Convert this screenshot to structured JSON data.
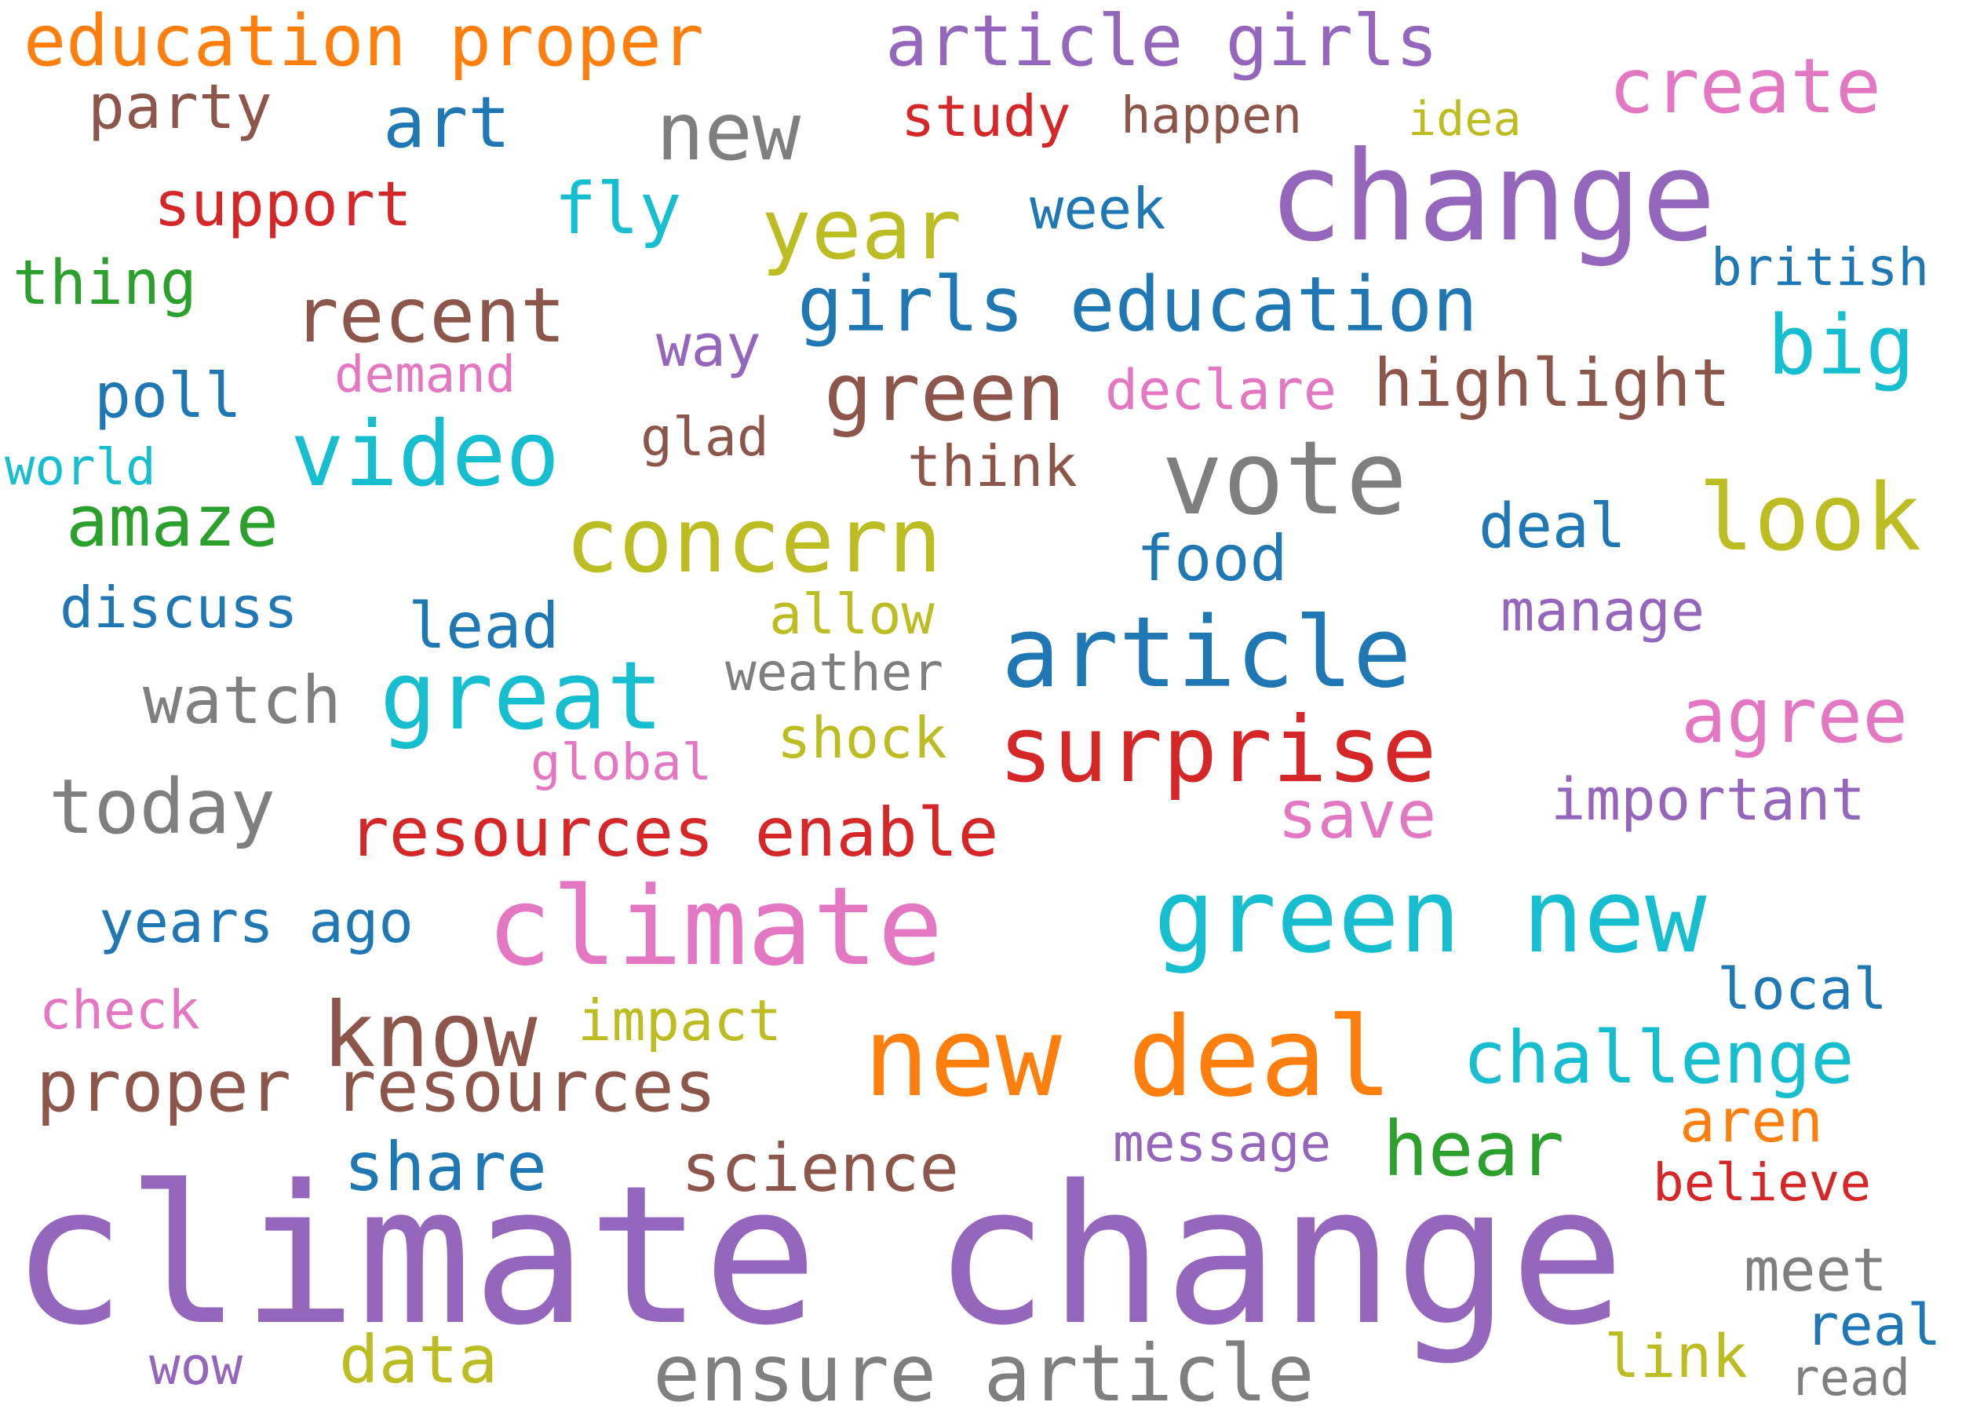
{
  "palette": {
    "orange": "#ff7f0e",
    "purple": "#9467bd",
    "pink": "#e377c2",
    "brown": "#8c564b",
    "blue": "#1f77b4",
    "gray": "#7f7f7f",
    "red": "#d62728",
    "olive": "#bcbd22",
    "cyan": "#17becf",
    "green": "#2ca02c"
  },
  "words": [
    {
      "text": "education proper"
    },
    {
      "text": "article girls"
    },
    {
      "text": "create"
    },
    {
      "text": "party"
    },
    {
      "text": "art"
    },
    {
      "text": "new"
    },
    {
      "text": "study"
    },
    {
      "text": "happen"
    },
    {
      "text": "idea"
    },
    {
      "text": "change"
    },
    {
      "text": "support"
    },
    {
      "text": "fly"
    },
    {
      "text": "year"
    },
    {
      "text": "week"
    },
    {
      "text": "thing"
    },
    {
      "text": "british"
    },
    {
      "text": "recent"
    },
    {
      "text": "girls education"
    },
    {
      "text": "big"
    },
    {
      "text": "way"
    },
    {
      "text": "demand"
    },
    {
      "text": "poll"
    },
    {
      "text": "green"
    },
    {
      "text": "declare"
    },
    {
      "text": "highlight"
    },
    {
      "text": "glad"
    },
    {
      "text": "video"
    },
    {
      "text": "world"
    },
    {
      "text": "think"
    },
    {
      "text": "vote"
    },
    {
      "text": "amaze"
    },
    {
      "text": "concern"
    },
    {
      "text": "look"
    },
    {
      "text": "deal"
    },
    {
      "text": "food"
    },
    {
      "text": "discuss"
    },
    {
      "text": "allow"
    },
    {
      "text": "lead"
    },
    {
      "text": "manage"
    },
    {
      "text": "article"
    },
    {
      "text": "weather"
    },
    {
      "text": "watch"
    },
    {
      "text": "great"
    },
    {
      "text": "agree"
    },
    {
      "text": "shock"
    },
    {
      "text": "surprise"
    },
    {
      "text": "global"
    },
    {
      "text": "today"
    },
    {
      "text": "important"
    },
    {
      "text": "save"
    },
    {
      "text": "resources enable"
    },
    {
      "text": "years ago"
    },
    {
      "text": "climate"
    },
    {
      "text": "green new"
    },
    {
      "text": "local"
    },
    {
      "text": "check"
    },
    {
      "text": "impact"
    },
    {
      "text": "know"
    },
    {
      "text": "new deal"
    },
    {
      "text": "challenge"
    },
    {
      "text": "proper resources"
    },
    {
      "text": "aren"
    },
    {
      "text": "message"
    },
    {
      "text": "hear"
    },
    {
      "text": "share"
    },
    {
      "text": "science"
    },
    {
      "text": "believe"
    },
    {
      "text": "climate change"
    },
    {
      "text": "meet"
    },
    {
      "text": "real"
    },
    {
      "text": "link"
    },
    {
      "text": "wow"
    },
    {
      "text": "data"
    },
    {
      "text": "ensure article"
    },
    {
      "text": "read"
    }
  ]
}
